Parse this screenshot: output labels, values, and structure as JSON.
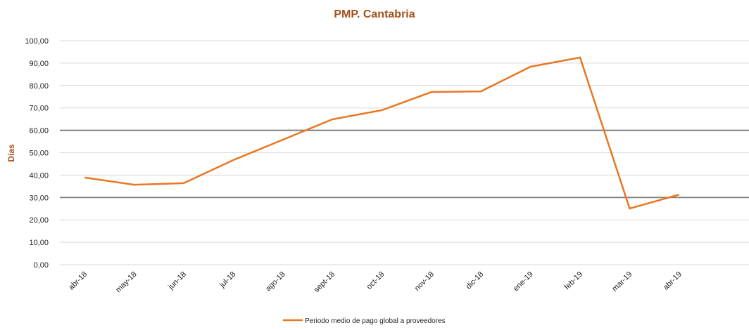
{
  "chart_data": {
    "type": "line",
    "title": "PMP.  Cantabria",
    "y_label": "Días",
    "categories": [
      "abr-18",
      "may-18",
      "jun-18",
      "jul-18",
      "ago-18",
      "sept-18",
      "oct-18",
      "nov-18",
      "dic-18",
      "ene-19",
      "feb-19",
      "mar-19",
      "abr-19"
    ],
    "series": [
      {
        "name": "Periodo medio de pago global a proveedores",
        "color": "#e87722",
        "values": [
          38.9,
          35.7,
          36.4,
          46.7,
          55.8,
          64.9,
          69.0,
          77.1,
          77.4,
          88.4,
          92.5,
          25.1,
          31.3
        ]
      }
    ],
    "reference_lines": [
      60,
      30
    ],
    "reference_color": "#808080",
    "ylim": [
      0,
      100
    ],
    "yticks": [
      {
        "value": 0,
        "label": "0,00"
      },
      {
        "value": 10,
        "label": "10,00"
      },
      {
        "value": 20,
        "label": "20,00"
      },
      {
        "value": 30,
        "label": "30,00"
      },
      {
        "value": 40,
        "label": "40,00"
      },
      {
        "value": 50,
        "label": "50,00"
      },
      {
        "value": 60,
        "label": "60,00"
      },
      {
        "value": 70,
        "label": "70,00"
      },
      {
        "value": 80,
        "label": "80,00"
      },
      {
        "value": 90,
        "label": "90,00"
      },
      {
        "value": 100,
        "label": "100,00"
      }
    ],
    "grid": true,
    "legend": "bottom"
  }
}
